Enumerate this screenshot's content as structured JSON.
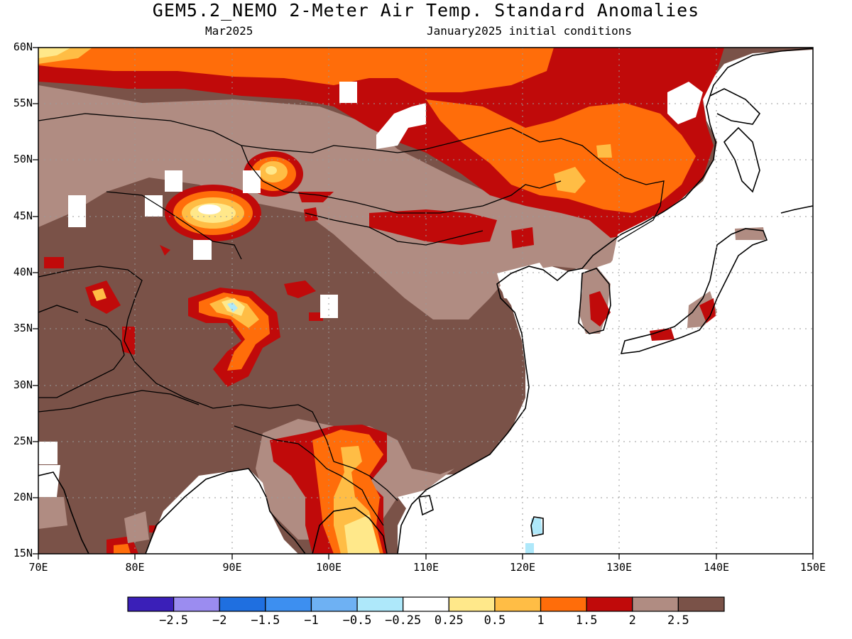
{
  "header": {
    "title": "GEM5.2_NEMO 2-Meter Air Temp. Standard Anomalies",
    "valid_month": "Mar2025",
    "initial_conditions": "January2025 initial conditions"
  },
  "map": {
    "projection": "lat-lon",
    "lon_range": [
      70,
      150
    ],
    "lat_range": [
      15,
      60
    ],
    "lat_ticks": [
      "60N",
      "55N",
      "50N",
      "45N",
      "40N",
      "35N",
      "30N",
      "25N",
      "20N",
      "15N"
    ],
    "lon_ticks": [
      "70E",
      "80E",
      "90E",
      "100E",
      "110E",
      "120E",
      "130E",
      "140E",
      "150E"
    ],
    "gridlines": "dotted",
    "ocean_masked": true
  },
  "colorbar": {
    "bins": [
      {
        "color": "#3a1fb8"
      },
      {
        "color": "#9b8cf0"
      },
      {
        "color": "#1f6fe0"
      },
      {
        "color": "#3d8ff0"
      },
      {
        "color": "#6eb1f3"
      },
      {
        "color": "#aee8fa"
      },
      {
        "color": "#ffffff"
      },
      {
        "color": "#ffe88a"
      },
      {
        "color": "#ffbd45"
      },
      {
        "color": "#ff6d0a"
      },
      {
        "color": "#c00a0a"
      },
      {
        "color": "#b08c82"
      },
      {
        "color": "#7a5248"
      }
    ],
    "labels": [
      "−2.5",
      "−2",
      "−1.5",
      "−1",
      "−0.5",
      "−0.25",
      "0.25",
      "0.5",
      "1",
      "1.5",
      "2",
      "2.5"
    ]
  }
}
